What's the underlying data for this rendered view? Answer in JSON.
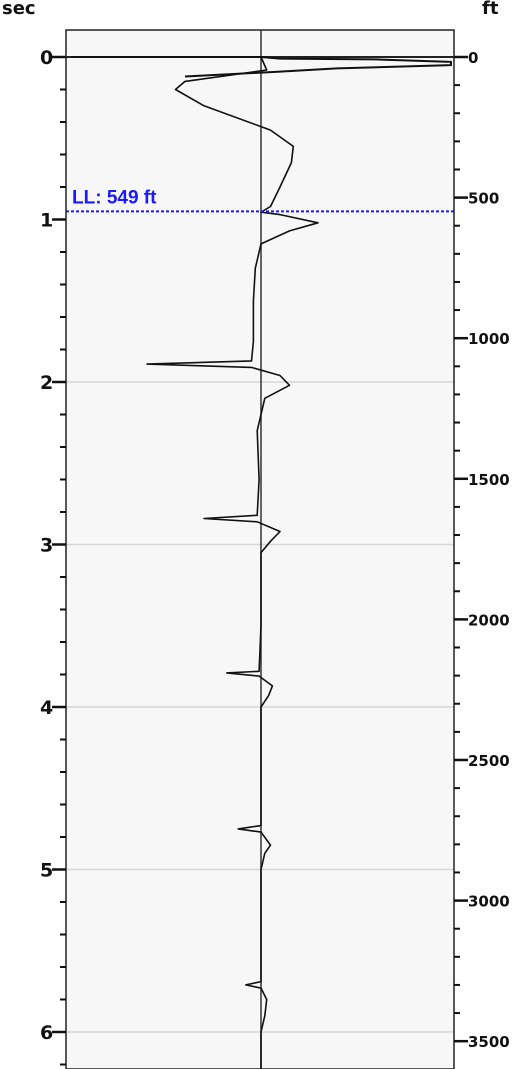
{
  "chart_data": {
    "type": "line",
    "title": "",
    "left_axis": {
      "unit": "sec",
      "range": [
        0,
        6.25
      ],
      "major_ticks": [
        0,
        1,
        2,
        3,
        4,
        5,
        6
      ],
      "tick_labels": [
        "0",
        "1",
        "2",
        "3",
        "4",
        "5",
        "6"
      ],
      "minor_step": 0.2
    },
    "right_axis": {
      "unit": "ft",
      "range": [
        0,
        3640
      ],
      "major_ticks": [
        0,
        500,
        1000,
        1500,
        2000,
        2500,
        3000,
        3500
      ],
      "tick_labels": [
        "0",
        "500",
        "1000",
        "1500",
        "2000",
        "2500",
        "3000",
        "3500"
      ],
      "minor_step": 100
    },
    "grid": true,
    "horizontal_gridlines_sec": [
      2,
      3,
      4,
      5,
      6
    ],
    "marker": {
      "label": "LL: 549 ft",
      "value_ft": 549,
      "color": "#1a1aff"
    },
    "series": [
      {
        "style": "trace",
        "color": "#111111",
        "points": [
          [
            0,
            0.0
          ],
          [
            0.08,
            0.03
          ],
          [
            0.15,
            -0.4
          ],
          [
            0.2,
            -0.45
          ],
          [
            0.3,
            -0.3
          ],
          [
            0.45,
            0.05
          ],
          [
            0.55,
            0.17
          ],
          [
            0.65,
            0.16
          ],
          [
            0.8,
            0.1
          ],
          [
            0.92,
            0.05
          ],
          [
            0.955,
            0.0
          ],
          [
            0.97,
            0.1
          ],
          [
            1.02,
            0.3
          ],
          [
            1.07,
            0.15
          ],
          [
            1.15,
            0.0
          ],
          [
            1.3,
            -0.03
          ],
          [
            1.5,
            -0.04
          ],
          [
            1.75,
            -0.04
          ],
          [
            1.87,
            -0.05
          ],
          [
            1.89,
            -0.6
          ],
          [
            1.91,
            -0.05
          ],
          [
            1.96,
            0.1
          ],
          [
            2.02,
            0.15
          ],
          [
            2.1,
            0.02
          ],
          [
            2.3,
            -0.02
          ],
          [
            2.6,
            -0.01
          ],
          [
            2.82,
            -0.02
          ],
          [
            2.84,
            -0.3
          ],
          [
            2.86,
            -0.02
          ],
          [
            2.92,
            0.1
          ],
          [
            2.98,
            0.05
          ],
          [
            3.05,
            0.0
          ],
          [
            3.5,
            0.0
          ],
          [
            3.78,
            -0.01
          ],
          [
            3.79,
            -0.18
          ],
          [
            3.81,
            -0.01
          ],
          [
            3.87,
            0.06
          ],
          [
            3.93,
            0.04
          ],
          [
            4.0,
            0.0
          ],
          [
            4.5,
            0.0
          ],
          [
            4.73,
            0.0
          ],
          [
            4.75,
            -0.12
          ],
          [
            4.77,
            0.0
          ],
          [
            4.85,
            0.05
          ],
          [
            4.9,
            0.02
          ],
          [
            5.0,
            0.0
          ],
          [
            5.5,
            0.0
          ],
          [
            5.69,
            0.0
          ],
          [
            5.71,
            -0.08
          ],
          [
            5.73,
            0.0
          ],
          [
            5.8,
            0.03
          ],
          [
            5.9,
            0.02
          ],
          [
            6.0,
            0.0
          ],
          [
            6.25,
            0.0
          ]
        ]
      },
      {
        "style": "first-arrival",
        "color": "#111111",
        "points": [
          [
            0.0,
            -1.0
          ],
          [
            0.0,
            -0.5
          ],
          [
            0.0,
            0.0
          ],
          [
            0.01,
            0.1
          ],
          [
            0.015,
            0.6
          ],
          [
            0.03,
            1.0
          ],
          [
            0.05,
            1.0
          ],
          [
            0.07,
            0.4
          ],
          [
            0.09,
            0.1
          ],
          [
            0.12,
            -0.4
          ]
        ]
      }
    ]
  }
}
